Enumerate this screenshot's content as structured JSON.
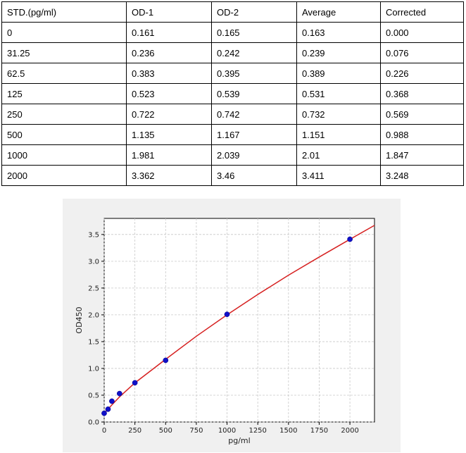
{
  "table": {
    "headers": [
      "STD.(pg/ml)",
      "OD-1",
      "OD-2",
      "Average",
      "Corrected"
    ],
    "rows": [
      [
        "0",
        "0.161",
        "0.165",
        "0.163",
        "0.000"
      ],
      [
        "31.25",
        "0.236",
        "0.242",
        "0.239",
        "0.076"
      ],
      [
        "62.5",
        "0.383",
        "0.395",
        "0.389",
        "0.226"
      ],
      [
        "125",
        "0.523",
        "0.539",
        "0.531",
        "0.368"
      ],
      [
        "250",
        "0.722",
        "0.742",
        "0.732",
        "0.569"
      ],
      [
        "500",
        "1.135",
        "1.167",
        "1.151",
        "0.988"
      ],
      [
        "1000",
        "1.981",
        "2.039",
        "2.01",
        "1.847"
      ],
      [
        "2000",
        "3.362",
        "3.46",
        "3.411",
        "3.248"
      ]
    ]
  },
  "chart_data": {
    "type": "scatter",
    "title": "",
    "xlabel": "pg/ml",
    "ylabel": "OD450",
    "xlim": [
      0,
      2200
    ],
    "ylim": [
      0,
      3.8
    ],
    "xticks": [
      0,
      250,
      500,
      750,
      1000,
      1250,
      1500,
      1750,
      2000
    ],
    "yticks": [
      0.0,
      0.5,
      1.0,
      1.5,
      2.0,
      2.5,
      3.0,
      3.5
    ],
    "ytick_labels": [
      "0.0",
      "0.5",
      "1.0",
      "1.5",
      "2.0",
      "2.5",
      "3.0",
      "3.5"
    ],
    "grid": true,
    "points": {
      "x": [
        0,
        31.25,
        62.5,
        125,
        250,
        500,
        1000,
        2000
      ],
      "y": [
        0.163,
        0.239,
        0.389,
        0.531,
        0.732,
        1.151,
        2.01,
        3.411
      ]
    },
    "fit_curve": {
      "x": [
        0,
        31.25,
        62.5,
        125,
        250,
        500,
        750,
        1000,
        1250,
        1500,
        1750,
        2000,
        2200
      ],
      "y": [
        0.16,
        0.24,
        0.32,
        0.47,
        0.73,
        1.17,
        1.6,
        2.0,
        2.38,
        2.74,
        3.08,
        3.41,
        3.67
      ]
    },
    "colors": {
      "points": "#1010c8",
      "curve": "#d62020",
      "grid": "#c8c8c8",
      "panel_bg": "#f0f0f0",
      "plot_bg": "#ffffff"
    }
  }
}
